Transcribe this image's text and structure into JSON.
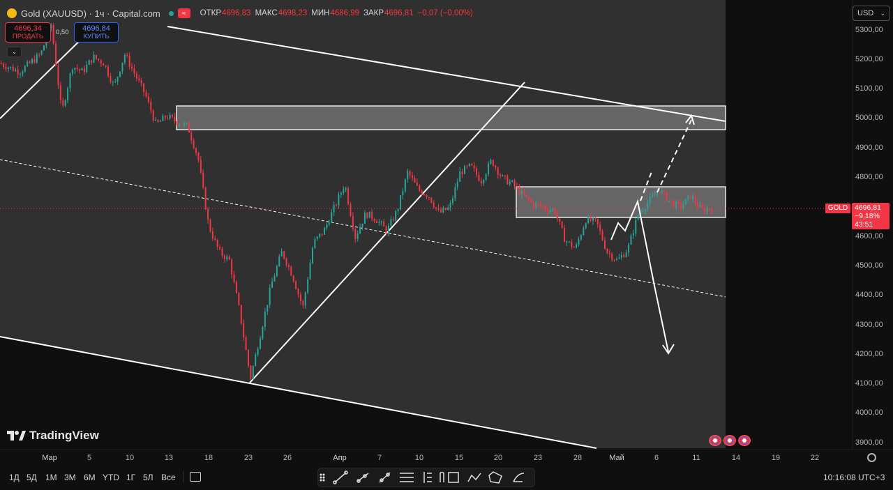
{
  "header": {
    "title": "Gold (XAUUSD) · 1ч · Capital.com",
    "open_label": "ОТКР",
    "open": "4696,83",
    "high_label": "МАКС",
    "high": "4698,23",
    "low_label": "МИН",
    "low": "4686,99",
    "close_label": "ЗАКР",
    "close": "4696,81",
    "change": "−0,07 (−0,00%)"
  },
  "trade": {
    "sell_price": "4696,34",
    "sell_label": "ПРОДАТЬ",
    "spread": "0,50",
    "buy_price": "4696,84",
    "buy_label": "КУПИТЬ"
  },
  "currency": "USD",
  "price_axis": [
    "5300,00",
    "5200,00",
    "5100,00",
    "5000,00",
    "4900,00",
    "4800,00",
    "4700,00",
    "4600,00",
    "4500,00",
    "4400,00",
    "4300,00",
    "4200,00",
    "4100,00",
    "4000,00",
    "3900,00"
  ],
  "last_price": {
    "symbol": "GOLD",
    "price": "4696,81",
    "change": "−9,18%",
    "countdown": "43:51"
  },
  "date_axis": [
    {
      "label": "Мар",
      "strong": true
    },
    {
      "label": "5"
    },
    {
      "label": "10"
    },
    {
      "label": "13"
    },
    {
      "label": "18"
    },
    {
      "label": "23"
    },
    {
      "label": "26"
    },
    {
      "label": "Апр",
      "strong": true
    },
    {
      "label": "7"
    },
    {
      "label": "10"
    },
    {
      "label": "15"
    },
    {
      "label": "20"
    },
    {
      "label": "23"
    },
    {
      "label": "28"
    },
    {
      "label": "Май",
      "strong": true
    },
    {
      "label": "6"
    },
    {
      "label": "11"
    },
    {
      "label": "14"
    },
    {
      "label": "19"
    },
    {
      "label": "22"
    }
  ],
  "brand": "TradingView",
  "periods": [
    "1Д",
    "5Д",
    "1М",
    "3М",
    "6М",
    "YTD",
    "1Г",
    "5Л",
    "Все"
  ],
  "time": "10:16:08 UTC+3",
  "colors": {
    "up": "#26a69a",
    "down": "#f23645",
    "accent": "#2962ff",
    "zone": "#4a4a4a"
  },
  "chart_data": {
    "type": "candlestick",
    "title": "Gold (XAUUSD) · 1ч · Capital.com",
    "ylim": [
      3870,
      5340
    ],
    "y_ticks": [
      3900,
      4000,
      4100,
      4200,
      4300,
      4400,
      4500,
      4600,
      4700,
      4800,
      4900,
      5000,
      5100,
      5200,
      5300
    ],
    "last": 4696.81,
    "price_path": [
      [
        0,
        5190
      ],
      [
        2,
        5160
      ],
      [
        4,
        5220
      ],
      [
        5,
        5320
      ],
      [
        6,
        5020
      ],
      [
        7,
        5180
      ],
      [
        8,
        5160
      ],
      [
        9,
        5210
      ],
      [
        10,
        5190
      ],
      [
        11,
        5110
      ],
      [
        12,
        5220
      ],
      [
        13,
        5150
      ],
      [
        14,
        5080
      ],
      [
        15,
        4980
      ],
      [
        16,
        5010
      ],
      [
        17,
        4990
      ],
      [
        18,
        4975
      ],
      [
        19,
        4870
      ],
      [
        20,
        4640
      ],
      [
        21,
        4550
      ],
      [
        22,
        4520
      ],
      [
        23,
        4340
      ],
      [
        24,
        4120
      ],
      [
        25,
        4280
      ],
      [
        26,
        4440
      ],
      [
        27,
        4550
      ],
      [
        28,
        4470
      ],
      [
        29,
        4360
      ],
      [
        30,
        4580
      ],
      [
        31,
        4620
      ],
      [
        32,
        4700
      ],
      [
        33,
        4780
      ],
      [
        34,
        4600
      ],
      [
        35,
        4680
      ],
      [
        36,
        4660
      ],
      [
        37,
        4620
      ],
      [
        38,
        4690
      ],
      [
        39,
        4820
      ],
      [
        40,
        4760
      ],
      [
        41,
        4740
      ],
      [
        42,
        4680
      ],
      [
        43,
        4700
      ],
      [
        44,
        4820
      ],
      [
        45,
        4840
      ],
      [
        46,
        4790
      ],
      [
        47,
        4860
      ],
      [
        48,
        4800
      ],
      [
        49,
        4780
      ],
      [
        50,
        4740
      ],
      [
        51,
        4710
      ],
      [
        52,
        4700
      ],
      [
        53,
        4690
      ],
      [
        54,
        4590
      ],
      [
        55,
        4560
      ],
      [
        56,
        4660
      ],
      [
        57,
        4650
      ],
      [
        58,
        4550
      ],
      [
        59,
        4520
      ],
      [
        60,
        4560
      ],
      [
        61,
        4680
      ],
      [
        62,
        4720
      ],
      [
        63,
        4760
      ],
      [
        64,
        4720
      ],
      [
        65,
        4700
      ],
      [
        66,
        4740
      ],
      [
        67,
        4690
      ],
      [
        68,
        4697
      ]
    ],
    "zones": [
      {
        "from": 4965,
        "to": 5045
      },
      {
        "from": 4665,
        "to": 4768
      }
    ]
  }
}
